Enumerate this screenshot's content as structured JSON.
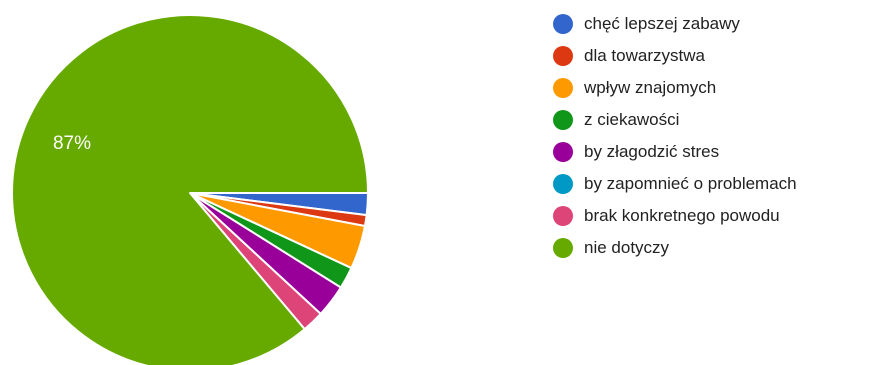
{
  "chart_data": {
    "type": "pie",
    "slices": [
      {
        "label": "chęć lepszej zabawy",
        "value": 2,
        "color": "#3366cc"
      },
      {
        "label": "dla towarzystwa",
        "value": 1,
        "color": "#dc3912"
      },
      {
        "label": "wpływ znajomych",
        "value": 4,
        "color": "#ff9900"
      },
      {
        "label": "z ciekawości",
        "value": 2,
        "color": "#109618"
      },
      {
        "label": "by złagodzić stres",
        "value": 3,
        "color": "#990099"
      },
      {
        "label": "by zapomnieć o problemach",
        "value": 0,
        "color": "#0099c6"
      },
      {
        "label": "brak konkretnego powodu",
        "value": 2,
        "color": "#dd4477"
      },
      {
        "label": "nie dotyczy",
        "value": 87,
        "color": "#66aa00"
      }
    ],
    "data_labels": [
      {
        "slice": "nie dotyczy",
        "text": "87%"
      }
    ],
    "legend_placement": "right"
  }
}
